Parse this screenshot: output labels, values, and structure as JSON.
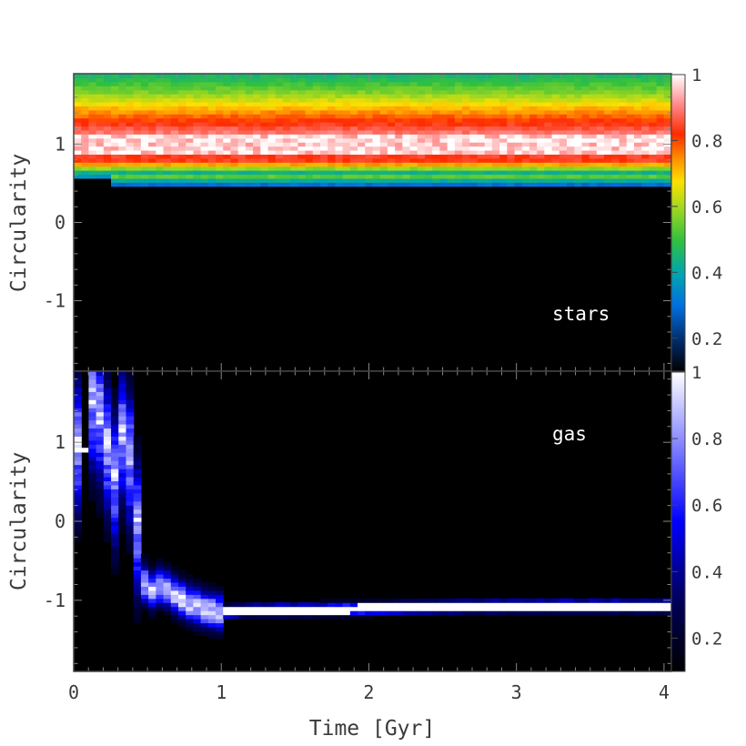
{
  "chart_data": [
    {
      "type": "heatmap",
      "panel_label": "stars",
      "ylabel": "Circularity",
      "xlabel": "",
      "xlim": [
        0,
        4.05
      ],
      "ylim": [
        -1.9,
        1.9
      ],
      "yticks": [
        {
          "v": 1,
          "label": "1"
        },
        {
          "v": 0,
          "label": "0"
        },
        {
          "v": -1,
          "label": "-1"
        }
      ],
      "colormap": "rainbow (black-blue-cyan-green-yellow-orange-red-white)",
      "colorbar_ticks": [
        {
          "v": 1,
          "label": "1"
        },
        {
          "v": 0.8,
          "label": "0.8"
        },
        {
          "v": 0.6,
          "label": "0.6"
        },
        {
          "v": 0.4,
          "label": "0.4"
        },
        {
          "v": 0.2,
          "label": "0.2"
        }
      ],
      "colorbar_range": [
        0.1,
        1
      ],
      "description": "circularity distribution of stars vs time; peak near circularity 1.0, band from 0.5 to 1.9"
    },
    {
      "type": "heatmap",
      "panel_label": "gas",
      "ylabel": "Circularity",
      "xlabel": "Time [Gyr]",
      "xlim": [
        0,
        4.05
      ],
      "ylim": [
        -1.9,
        1.9
      ],
      "xticks": [
        {
          "v": 0,
          "label": "0"
        },
        {
          "v": 1,
          "label": "1"
        },
        {
          "v": 2,
          "label": "2"
        },
        {
          "v": 3,
          "label": "3"
        },
        {
          "v": 4,
          "label": "4"
        }
      ],
      "yticks": [
        {
          "v": 1,
          "label": "1"
        },
        {
          "v": 0,
          "label": "0"
        },
        {
          "v": -1,
          "label": "-1"
        }
      ],
      "colormap": "black-blue-white",
      "colorbar_ticks": [
        {
          "v": 1,
          "label": "1"
        },
        {
          "v": 0.8,
          "label": "0.8"
        },
        {
          "v": 0.6,
          "label": "0.6"
        },
        {
          "v": 0.4,
          "label": "0.4"
        },
        {
          "v": 0.2,
          "label": "0.2"
        }
      ],
      "colorbar_range": [
        0.1,
        1
      ],
      "track": [
        [
          0.05,
          0.9
        ],
        [
          0.13,
          1.45
        ],
        [
          0.2,
          1.15
        ],
        [
          0.27,
          0.4
        ],
        [
          0.33,
          1.05
        ],
        [
          0.4,
          0.6
        ],
        [
          0.45,
          -0.6
        ],
        [
          0.5,
          -0.9
        ],
        [
          0.6,
          -0.8
        ],
        [
          0.7,
          -0.95
        ],
        [
          0.8,
          -1.05
        ],
        [
          0.9,
          -1.12
        ],
        [
          1.0,
          -1.15
        ],
        [
          1.2,
          -1.12
        ],
        [
          1.5,
          -1.12
        ],
        [
          2.0,
          -1.1
        ],
        [
          2.5,
          -1.08
        ],
        [
          3.0,
          -1.07
        ],
        [
          3.5,
          -1.07
        ],
        [
          4.05,
          -1.07
        ]
      ]
    }
  ]
}
